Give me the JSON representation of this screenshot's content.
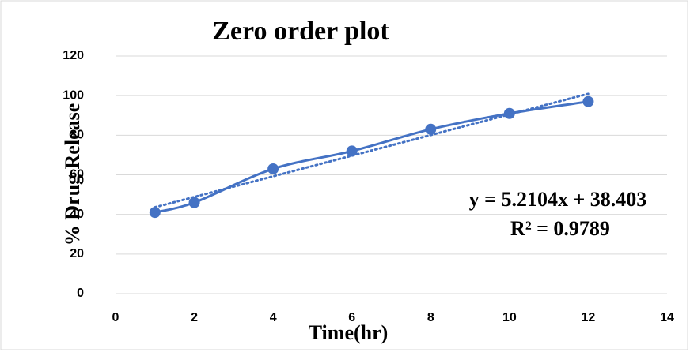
{
  "chart_data": {
    "type": "line",
    "title": "Zero order plot",
    "x_label": "Time(hr)",
    "y_label": "% Drug Release",
    "x": [
      1,
      2,
      4,
      6,
      8,
      10,
      12
    ],
    "values": [
      41,
      46,
      63,
      72,
      83,
      91,
      97
    ],
    "color": "#4472c4",
    "smooth": true,
    "xlim": [
      0,
      14
    ],
    "xticks": [
      0,
      2,
      4,
      6,
      8,
      10,
      12,
      14
    ],
    "ylim": [
      0,
      120
    ],
    "yticks": [
      0,
      20,
      40,
      60,
      80,
      100,
      120
    ],
    "grid": true,
    "trendline": {
      "slope": 5.2104,
      "intercept": 38.403,
      "style": "dotted"
    },
    "annotations": [
      "y = 5.2104x + 38.403",
      "R² = 0.9789"
    ]
  }
}
